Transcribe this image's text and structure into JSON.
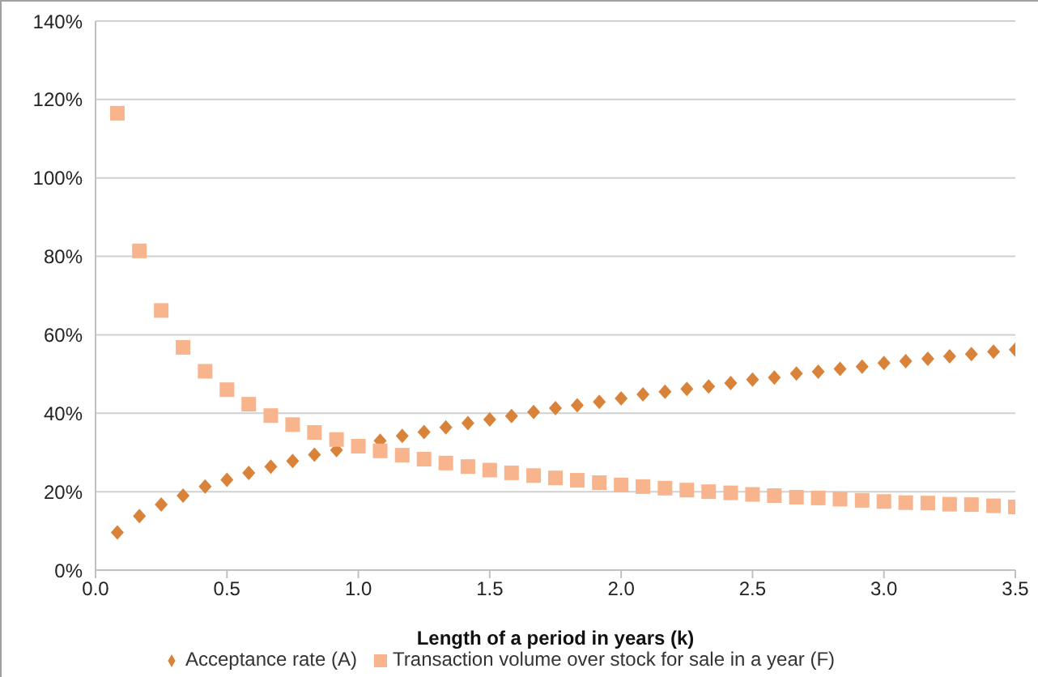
{
  "chart_data": {
    "type": "scatter",
    "xlabel": "Length of a period in years (k)",
    "x": [
      0.083,
      0.167,
      0.25,
      0.333,
      0.417,
      0.5,
      0.583,
      0.667,
      0.75,
      0.833,
      0.917,
      1.0,
      1.083,
      1.167,
      1.25,
      1.333,
      1.417,
      1.5,
      1.583,
      1.667,
      1.75,
      1.833,
      1.917,
      2.0,
      2.083,
      2.167,
      2.25,
      2.333,
      2.417,
      2.5,
      2.583,
      2.667,
      2.75,
      2.833,
      2.917,
      3.0,
      3.083,
      3.167,
      3.25,
      3.333,
      3.417,
      3.5
    ],
    "series": [
      {
        "name": "Acceptance rate (A)",
        "color": "#d8823a",
        "marker": "diamond",
        "values": [
          9.6,
          13.8,
          16.7,
          19.0,
          21.3,
          23.0,
          24.8,
          26.4,
          27.8,
          29.4,
          30.6,
          null,
          33.0,
          34.2,
          35.2,
          36.4,
          37.5,
          38.4,
          39.3,
          40.3,
          41.3,
          42.0,
          42.9,
          43.8,
          44.8,
          45.5,
          46.2,
          46.8,
          47.7,
          48.6,
          49.1,
          50.1,
          50.6,
          51.3,
          51.9,
          52.8,
          53.3,
          53.9,
          54.5,
          55.1,
          55.7,
          56.2
        ]
      },
      {
        "name": "Transaction volume over stock for sale in a year (F)",
        "color": "#f8b48c",
        "marker": "square",
        "values": [
          116.5,
          81.4,
          66.2,
          56.8,
          50.7,
          46.0,
          42.3,
          39.4,
          37.1,
          35.1,
          33.3,
          31.6,
          30.4,
          29.3,
          28.3,
          27.3,
          26.4,
          25.5,
          24.8,
          24.1,
          23.5,
          22.9,
          22.3,
          21.7,
          21.3,
          20.9,
          20.4,
          20.0,
          19.7,
          19.3,
          19.0,
          18.6,
          18.4,
          18.1,
          17.8,
          17.5,
          17.2,
          17.1,
          16.8,
          16.7,
          16.4,
          16.1
        ]
      }
    ],
    "xlim": [
      0,
      3.5
    ],
    "xticks": [
      {
        "value": 0,
        "label": "0.0"
      },
      {
        "value": 0.5,
        "label": "0.5"
      },
      {
        "value": 1,
        "label": "1.0"
      },
      {
        "value": 1.5,
        "label": "1.5"
      },
      {
        "value": 2,
        "label": "2.0"
      },
      {
        "value": 2.5,
        "label": "2.5"
      },
      {
        "value": 3,
        "label": "3.0"
      },
      {
        "value": 3.5,
        "label": "3.5"
      }
    ],
    "ylim": [
      0,
      140
    ],
    "yticks": [
      {
        "value": 0,
        "label": "0%"
      },
      {
        "value": 20,
        "label": "20%"
      },
      {
        "value": 40,
        "label": "40%"
      },
      {
        "value": 60,
        "label": "60%"
      },
      {
        "value": 80,
        "label": "80%"
      },
      {
        "value": 100,
        "label": "100%"
      },
      {
        "value": 120,
        "label": "120%"
      },
      {
        "value": 140,
        "label": "140%"
      }
    ],
    "grid": "y",
    "legend": "bottom"
  }
}
